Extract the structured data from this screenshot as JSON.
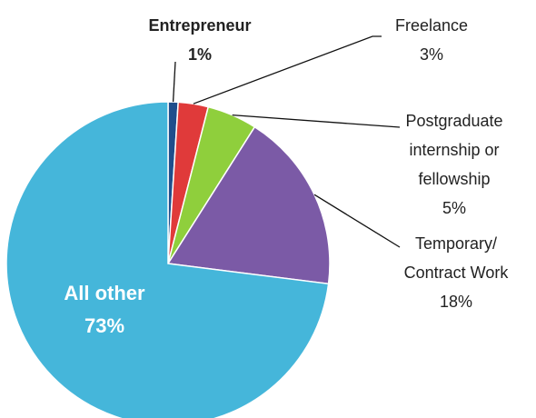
{
  "chart_data": {
    "type": "pie",
    "categories": [
      "Entrepreneur",
      "Freelance",
      "Postgraduate internship or fellowship",
      "Temporary/ Contract Work",
      "All other"
    ],
    "values": [
      1,
      3,
      5,
      18,
      73
    ],
    "value_labels": [
      "1%",
      "3%",
      "5%",
      "18%",
      "73%"
    ],
    "colors": [
      "#1f4e8c",
      "#e03a3a",
      "#8fcf3c",
      "#7b5aa6",
      "#45b6da"
    ]
  }
}
